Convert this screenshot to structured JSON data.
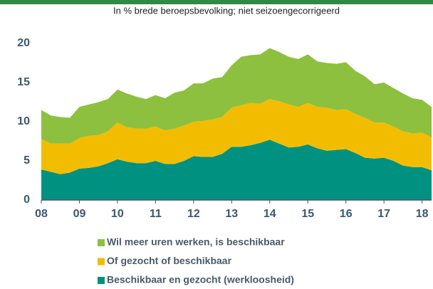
{
  "chart_data": {
    "type": "stacked_area",
    "subtitle": "In % brede beroepsbevolking; niet seizoengecorrigeerd",
    "x": [
      2008,
      2008.25,
      2008.5,
      2008.75,
      2009,
      2009.25,
      2009.5,
      2009.75,
      2010,
      2010.25,
      2010.5,
      2010.75,
      2011,
      2011.25,
      2011.5,
      2011.75,
      2012,
      2012.25,
      2012.5,
      2012.75,
      2013,
      2013.25,
      2013.5,
      2013.75,
      2014,
      2014.25,
      2014.5,
      2014.75,
      2015,
      2015.25,
      2015.5,
      2015.75,
      2016,
      2016.25,
      2016.5,
      2016.75,
      2017,
      2017.25,
      2017.5,
      2017.75,
      2018,
      2018.25
    ],
    "series": [
      {
        "name": "Beschikbaar en gezocht (werkloosheid)",
        "color": "#009180",
        "values": [
          3.9,
          3.6,
          3.3,
          3.5,
          4.0,
          4.1,
          4.3,
          4.7,
          5.2,
          4.9,
          4.7,
          4.7,
          5.0,
          4.6,
          4.6,
          5.0,
          5.6,
          5.5,
          5.5,
          5.9,
          6.8,
          6.8,
          7.0,
          7.3,
          7.7,
          7.2,
          6.7,
          6.8,
          7.1,
          6.6,
          6.3,
          6.4,
          6.5,
          6.0,
          5.4,
          5.3,
          5.4,
          5.0,
          4.4,
          4.2,
          4.2,
          3.8
        ]
      },
      {
        "name": "Of gezocht of beschikbaar",
        "color": "#f2bd00",
        "values": [
          3.9,
          3.6,
          3.9,
          3.7,
          3.9,
          4.1,
          4.0,
          4.1,
          4.7,
          4.4,
          4.4,
          4.4,
          4.4,
          4.3,
          4.5,
          4.5,
          4.4,
          4.6,
          4.8,
          4.7,
          5.0,
          5.3,
          5.4,
          5.0,
          5.2,
          5.4,
          5.5,
          5.1,
          5.3,
          5.3,
          5.5,
          5.1,
          5.1,
          5.0,
          5.1,
          4.6,
          4.5,
          4.4,
          4.4,
          4.3,
          4.4,
          4.2
        ]
      },
      {
        "name": "Wil meer uren werken, is beschikbaar",
        "color": "#8dc03f",
        "values": [
          3.7,
          3.6,
          3.4,
          3.3,
          4.0,
          4.0,
          4.2,
          4.1,
          4.2,
          4.3,
          4.1,
          3.8,
          4.0,
          4.1,
          4.6,
          4.5,
          4.9,
          4.8,
          5.2,
          5.1,
          5.4,
          6.2,
          6.1,
          6.3,
          6.5,
          6.3,
          6.1,
          6.1,
          6.2,
          5.8,
          5.7,
          5.9,
          6.0,
          5.5,
          5.3,
          4.9,
          5.1,
          4.9,
          4.8,
          4.5,
          4.2,
          3.9
        ]
      }
    ],
    "xlim": [
      2008,
      2018.25
    ],
    "xticks": [
      {
        "value": 2008,
        "label": "08"
      },
      {
        "value": 2009,
        "label": "09"
      },
      {
        "value": 2010,
        "label": "10"
      },
      {
        "value": 2011,
        "label": "11"
      },
      {
        "value": 2012,
        "label": "12"
      },
      {
        "value": 2013,
        "label": "13"
      },
      {
        "value": 2014,
        "label": "14"
      },
      {
        "value": 2015,
        "label": "15"
      },
      {
        "value": 2016,
        "label": "16"
      },
      {
        "value": 2017,
        "label": "17"
      },
      {
        "value": 2018,
        "label": "18"
      }
    ],
    "ylim": [
      0,
      20
    ],
    "yticks": [
      0,
      5,
      10,
      15,
      20
    ]
  }
}
